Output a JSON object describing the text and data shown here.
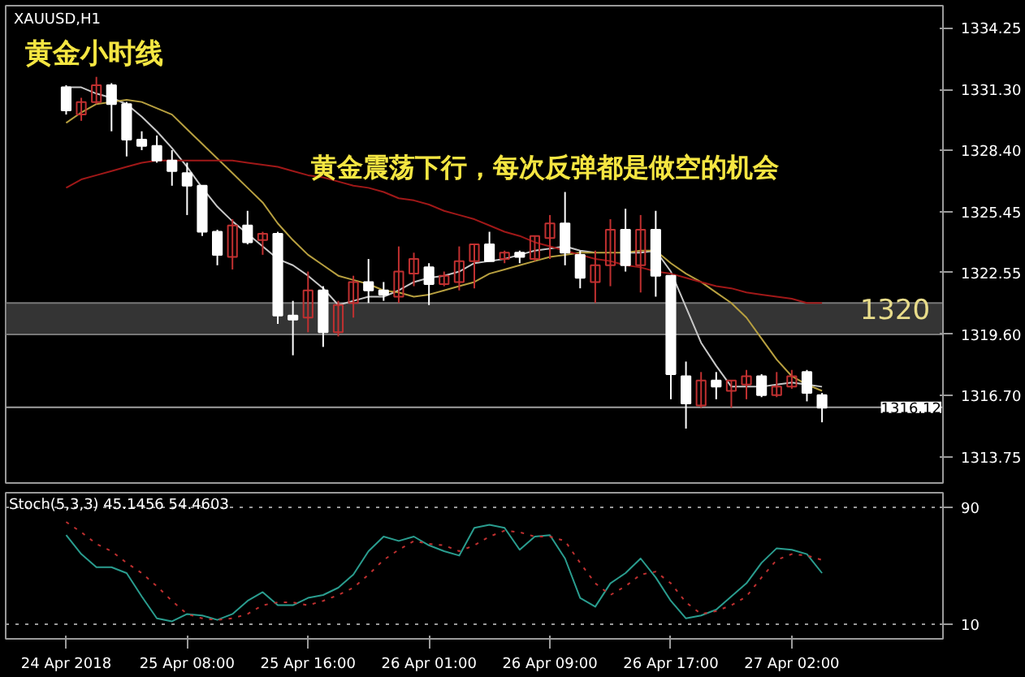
{
  "chart_data": [
    {
      "type": "candlestick",
      "title": "XAUUSD,H1",
      "annotations": [
        "黄金小时线",
        "黄金震荡下行，每次反弹都是做空的机会"
      ],
      "categories": [
        null,
        null,
        null,
        null,
        null,
        null,
        null,
        null,
        null,
        null,
        null,
        null,
        null,
        null,
        null,
        null,
        null,
        null,
        null,
        null,
        null,
        null,
        null,
        null,
        null,
        null,
        null,
        null,
        null,
        null,
        null,
        null,
        null,
        null,
        null,
        null,
        null,
        null,
        null,
        null,
        null,
        null,
        null,
        null,
        null,
        null,
        null,
        null,
        null,
        null,
        null
      ],
      "ohlc": [
        [
          1331.4,
          1331.5,
          1330.1,
          1330.3
        ],
        [
          1330.1,
          1330.9,
          1329.8,
          1330.7
        ],
        [
          1330.7,
          1331.9,
          1330.6,
          1331.5
        ],
        [
          1331.5,
          1331.6,
          1329.3,
          1330.6
        ],
        [
          1330.6,
          1330.7,
          1328.1,
          1328.9
        ],
        [
          1328.9,
          1329.3,
          1328.4,
          1328.6
        ],
        [
          1328.6,
          1329.1,
          1327.8,
          1327.9
        ],
        [
          1327.9,
          1328.4,
          1326.7,
          1327.4
        ],
        [
          1327.3,
          1327.8,
          1325.3,
          1326.7
        ],
        [
          1326.7,
          1326.7,
          1324.3,
          1324.5
        ],
        [
          1324.5,
          1324.6,
          1322.9,
          1323.4
        ],
        [
          1323.3,
          1325.1,
          1322.7,
          1324.8
        ],
        [
          1324.8,
          1325.5,
          1323.9,
          1324.0
        ],
        [
          1324.1,
          1324.5,
          1323.4,
          1324.4
        ],
        [
          1324.4,
          1324.5,
          1320.1,
          1320.5
        ],
        [
          1320.5,
          1321.2,
          1318.6,
          1320.3
        ],
        [
          1320.4,
          1322.6,
          1319.7,
          1321.7
        ],
        [
          1321.7,
          1321.9,
          1319.0,
          1319.7
        ],
        [
          1319.7,
          1321.2,
          1319.5,
          1321.0
        ],
        [
          1321.1,
          1322.4,
          1320.4,
          1322.1
        ],
        [
          1322.1,
          1323.2,
          1321.1,
          1321.7
        ],
        [
          1321.7,
          1322.1,
          1321.2,
          1321.5
        ],
        [
          1321.4,
          1323.8,
          1321.1,
          1322.6
        ],
        [
          1322.5,
          1323.5,
          1321.9,
          1323.2
        ],
        [
          1322.8,
          1323.0,
          1321.0,
          1322.0
        ],
        [
          1322.0,
          1322.6,
          1321.9,
          1322.4
        ],
        [
          1322.1,
          1323.8,
          1321.7,
          1323.1
        ],
        [
          1323.1,
          1323.9,
          1321.8,
          1323.9
        ],
        [
          1323.9,
          1324.5,
          1323.1,
          1323.1
        ],
        [
          1323.2,
          1323.6,
          1323.0,
          1323.5
        ],
        [
          1323.5,
          1323.6,
          1323.0,
          1323.3
        ],
        [
          1323.2,
          1324.3,
          1323.1,
          1324.3
        ],
        [
          1324.2,
          1325.3,
          1323.2,
          1324.9
        ],
        [
          1324.9,
          1326.4,
          1322.9,
          1323.5
        ],
        [
          1323.4,
          1323.6,
          1321.8,
          1322.3
        ],
        [
          1322.1,
          1323.6,
          1321.1,
          1322.9
        ],
        [
          1322.9,
          1325.1,
          1321.9,
          1324.6
        ],
        [
          1324.6,
          1325.6,
          1322.6,
          1322.9
        ],
        [
          1322.9,
          1325.3,
          1321.6,
          1324.6
        ],
        [
          1324.6,
          1325.5,
          1321.4,
          1322.4
        ],
        [
          1322.4,
          1322.4,
          1316.5,
          1317.7
        ],
        [
          1317.6,
          1318.3,
          1315.1,
          1316.3
        ],
        [
          1316.2,
          1317.8,
          1316.1,
          1317.4
        ],
        [
          1317.4,
          1317.8,
          1316.5,
          1317.1
        ],
        [
          1316.9,
          1317.4,
          1316.1,
          1317.4
        ],
        [
          1317.2,
          1317.9,
          1316.5,
          1317.6
        ],
        [
          1317.6,
          1317.7,
          1316.6,
          1316.7
        ],
        [
          1316.7,
          1317.8,
          1316.6,
          1317.1
        ],
        [
          1317.1,
          1317.9,
          1317.0,
          1317.6
        ],
        [
          1317.8,
          1317.9,
          1316.4,
          1316.8
        ],
        [
          1316.7,
          1316.8,
          1315.4,
          1316.1
        ]
      ],
      "colors": [
        "#ffffff",
        "#c03030",
        "#c03030",
        "#ffffff",
        "#ffffff",
        "#ffffff",
        "#ffffff",
        "#ffffff",
        "#ffffff",
        "#ffffff",
        "#ffffff",
        "#c03030",
        "#ffffff",
        "#c03030",
        "#ffffff",
        "#ffffff",
        "#c03030",
        "#ffffff",
        "#c03030",
        "#c03030",
        "#ffffff",
        "#ffffff",
        "#c03030",
        "#c03030",
        "#ffffff",
        "#c03030",
        "#c03030",
        "#c03030",
        "#ffffff",
        "#c03030",
        "#ffffff",
        "#c03030",
        "#c03030",
        "#ffffff",
        "#ffffff",
        "#c03030",
        "#c03030",
        "#ffffff",
        "#c03030",
        "#ffffff",
        "#ffffff",
        "#ffffff",
        "#c03030",
        "#ffffff",
        "#c03030",
        "#c03030",
        "#ffffff",
        "#c03030",
        "#c03030",
        "#ffffff",
        "#ffffff"
      ],
      "series": [
        {
          "type": "line",
          "color": "#c8c8c8",
          "values": [
            1331.4,
            1331.4,
            1331.1,
            1330.9,
            1330.6,
            1330.0,
            1329.3,
            1328.5,
            1327.6,
            1326.6,
            1325.7,
            1325.0,
            1324.4,
            1323.8,
            1323.2,
            1322.9,
            1322.4,
            1321.8,
            1321.0,
            1321.2,
            1321.4,
            1321.4,
            1321.7,
            1322.1,
            1322.3,
            1322.4,
            1322.6,
            1323.0,
            1323.1,
            1323.2,
            1323.4,
            1323.6,
            1323.7,
            1323.8,
            1323.6,
            1323.5,
            null,
            1323.5,
            1323.5,
            1323.6,
            1322.6,
            1320.9,
            1319.2,
            1318.1,
            1317.1,
            1317.1,
            1317.1,
            1317.2,
            1317.3,
            1317.2,
            1317.1
          ]
        },
        {
          "type": "line",
          "color": "#b8a040",
          "values": [
            1329.7,
            1330.2,
            1330.6,
            1330.7,
            1330.8,
            1330.7,
            1330.4,
            1330.1,
            1329.4,
            1328.7,
            1328.0,
            1327.3,
            1326.6,
            1325.9,
            1324.9,
            1324.1,
            1323.4,
            1322.9,
            1322.4,
            1322.2,
            1322.0,
            1321.7,
            1321.6,
            1321.4,
            1321.5,
            1321.7,
            1321.9,
            1322.1,
            1322.5,
            1322.7,
            1322.9,
            1323.1,
            1323.3,
            1323.4,
            1323.5,
            1323.5,
            1323.5,
            1323.5,
            1323.6,
            1323.6,
            1323.0,
            1322.5,
            1322.1,
            1321.6,
            1321.1,
            1320.4,
            1319.4,
            1318.4,
            1317.6,
            1317.2,
            1316.9
          ]
        },
        {
          "type": "line",
          "color": "#a01818",
          "values": [
            1326.6,
            1327.0,
            1327.2,
            1327.4,
            1327.6,
            1327.8,
            1327.9,
            1327.9,
            1327.9,
            1327.9,
            1327.9,
            1327.9,
            1327.8,
            1327.7,
            1327.6,
            1327.4,
            1327.2,
            1327.1,
            1326.9,
            1326.7,
            1326.6,
            1326.4,
            1326.1,
            1326.0,
            1325.8,
            1325.5,
            1325.3,
            1325.1,
            1324.8,
            1324.5,
            1324.3,
            1324.0,
            1323.8,
            1323.6,
            1323.4,
            1323.2,
            1323.1,
            1322.9,
            1322.8,
            1322.6,
            1322.5,
            1322.3,
            1322.1,
            1321.9,
            1321.8,
            1321.6,
            1321.5,
            1321.4,
            1321.3,
            1321.1,
            1321.1
          ]
        }
      ],
      "ylim": [
        1312.5,
        1335.3
      ],
      "yticks": [
        {
          "value": 1334.25,
          "label": "1334.25"
        },
        {
          "value": 1331.3,
          "label": "1331.30"
        },
        {
          "value": 1328.4,
          "label": "1328.40"
        },
        {
          "value": 1325.45,
          "label": "1325.45"
        },
        {
          "value": 1322.55,
          "label": "1322.55"
        },
        {
          "value": 1319.6,
          "label": "1319.60"
        },
        {
          "value": 1316.7,
          "label": "1316.70"
        },
        {
          "value": 1313.75,
          "label": "1313.75"
        }
      ],
      "bands": [
        {
          "axis": "y",
          "from": 1319.6,
          "to": 1321.1,
          "label": "1320",
          "color": "#3a3a3a"
        }
      ],
      "ref_lines": [
        {
          "axis": "y",
          "value": 1316.12,
          "label": "1316.12",
          "color": "#a0a0a0"
        }
      ],
      "tick_labels": "y"
    },
    {
      "type": "line",
      "title": "Stoch(5,3,3) 45.1456 54.4603",
      "categories": [
        "24 Apr 2018",
        null,
        null,
        null,
        null,
        null,
        null,
        null,
        "25 Apr 08:00",
        null,
        null,
        null,
        null,
        null,
        null,
        null,
        "25 Apr 16:00",
        null,
        null,
        null,
        null,
        null,
        null,
        null,
        "26 Apr 01:00",
        null,
        null,
        null,
        null,
        null,
        null,
        null,
        "26 Apr 09:00",
        null,
        null,
        null,
        null,
        null,
        null,
        null,
        "26 Apr 17:00",
        null,
        null,
        null,
        null,
        null,
        null,
        null,
        "27 Apr 02:00",
        null,
        null
      ],
      "series": [
        {
          "color": "#2a9d8f",
          "line_style": "solid",
          "values": [
            71,
            58,
            49,
            49,
            45,
            29,
            14,
            12,
            17,
            16,
            13,
            17,
            26,
            32,
            23,
            23,
            28,
            30,
            35,
            44,
            60,
            70,
            67,
            70,
            64,
            60,
            57,
            76,
            78,
            76,
            61,
            70,
            71,
            55,
            28,
            22,
            38,
            45,
            55,
            42,
            26,
            14,
            16,
            20,
            29,
            38,
            52,
            62,
            61,
            58,
            45
          ]
        },
        {
          "color": "#c03030",
          "line_style": "dotted",
          "values": [
            80,
            73,
            65,
            60,
            52,
            45,
            36,
            26,
            17,
            14,
            13,
            14,
            17,
            23,
            25,
            25,
            23,
            26,
            30,
            35,
            44,
            54,
            61,
            67,
            65,
            64,
            60,
            64,
            70,
            74,
            73,
            70,
            70,
            67,
            52,
            38,
            30,
            36,
            44,
            46,
            38,
            25,
            17,
            19,
            23,
            29,
            42,
            54,
            58,
            57,
            54
          ]
        }
      ],
      "ylim": [
        0,
        100
      ],
      "yticks": [
        10,
        90
      ],
      "ref_lines": [
        {
          "axis": "y",
          "value": 90,
          "color": "#9a9a9a",
          "line_style": "dotted"
        },
        {
          "axis": "y",
          "value": 10,
          "color": "#9a9a9a",
          "line_style": "dotted"
        }
      ]
    }
  ]
}
